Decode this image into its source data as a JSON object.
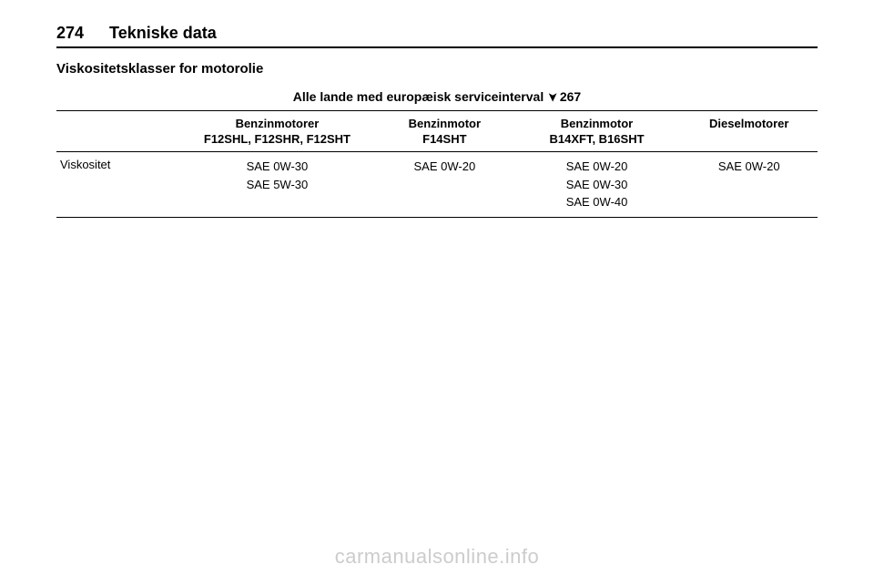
{
  "header": {
    "page_number": "274",
    "title": "Tekniske data"
  },
  "section": {
    "title": "Viskositetsklasser for motorolie"
  },
  "table": {
    "caption_prefix": "Alle lande med europæisk serviceinterval",
    "caption_ref": "267",
    "columns": [
      {
        "top": "Benzinmotorer",
        "sub": "F12SHL, F12SHR, F12SHT"
      },
      {
        "top": "Benzinmotor",
        "sub": "F14SHT"
      },
      {
        "top": "Benzinmotor",
        "sub": "B14XFT, B16SHT"
      },
      {
        "top": "Dieselmotorer",
        "sub": ""
      }
    ],
    "row_label": "Viskositet",
    "cells": [
      [
        "SAE 0W-30",
        "SAE 5W-30"
      ],
      [
        "SAE 0W-20"
      ],
      [
        "SAE 0W-20",
        "SAE 0W-30",
        "SAE 0W-40"
      ],
      [
        "SAE 0W-20"
      ]
    ]
  },
  "watermark": "carmanualsonline.info"
}
